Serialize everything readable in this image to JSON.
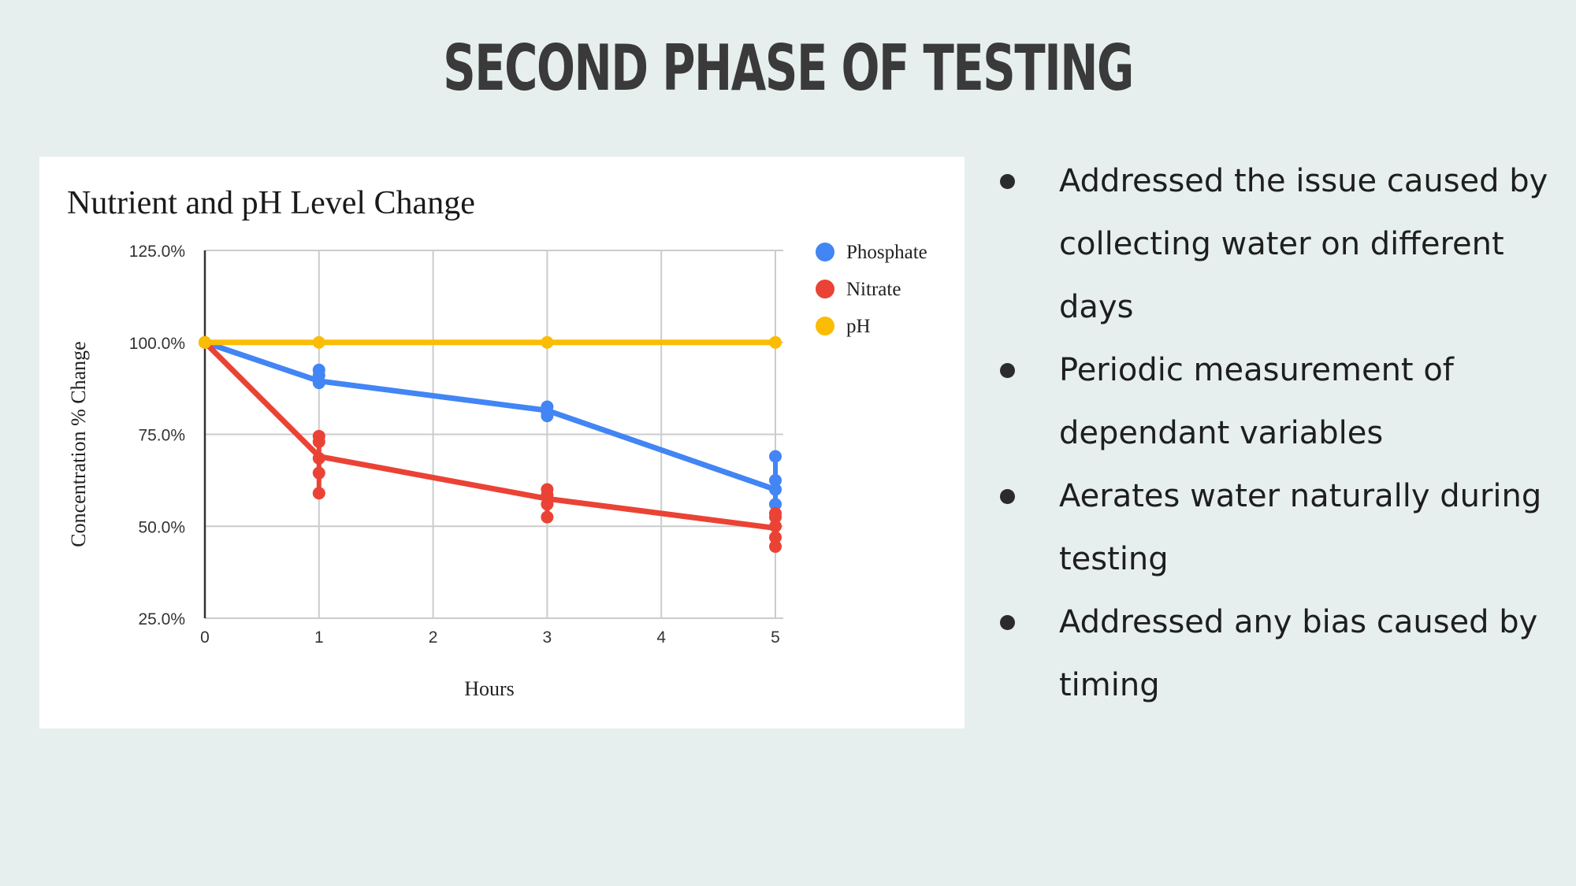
{
  "slide": {
    "title": "SECOND PHASE OF TESTING",
    "bullets": [
      "Addressed the issue caused by collecting water on different days",
      "Periodic measurement of dependant variables",
      "Aerates water naturally during testing",
      "Addressed any bias caused by timing"
    ]
  },
  "chart_data": {
    "type": "line",
    "title": "Nutrient and pH Level Change",
    "xlabel": "Hours",
    "ylabel": "Concentration % Change",
    "xlim": [
      0,
      5
    ],
    "ylim": [
      25,
      125
    ],
    "x_ticks": [
      "0",
      "1",
      "2",
      "3",
      "4",
      "5"
    ],
    "y_ticks": [
      "25.0%",
      "50.0%",
      "75.0%",
      "100.0%",
      "125.0%"
    ],
    "grid": true,
    "legend_position": "right",
    "series": [
      {
        "name": "Phosphate",
        "color": "#4285f4",
        "trend": [
          [
            0,
            100
          ],
          [
            1,
            89.5
          ],
          [
            3,
            81.5
          ],
          [
            5,
            60
          ]
        ],
        "points": [
          [
            1,
            92.5
          ],
          [
            1,
            91
          ],
          [
            1,
            89
          ],
          [
            3,
            82.5
          ],
          [
            3,
            81
          ],
          [
            3,
            80
          ],
          [
            5,
            69
          ],
          [
            5,
            62.5
          ],
          [
            5,
            60
          ],
          [
            5,
            56
          ]
        ]
      },
      {
        "name": "Nitrate",
        "color": "#ea4335",
        "trend": [
          [
            0,
            100
          ],
          [
            1,
            69
          ],
          [
            3,
            57.5
          ],
          [
            5,
            49.5
          ]
        ],
        "points": [
          [
            1,
            74.5
          ],
          [
            1,
            73
          ],
          [
            1,
            68.5
          ],
          [
            1,
            64.5
          ],
          [
            1,
            59
          ],
          [
            3,
            60
          ],
          [
            3,
            58.5
          ],
          [
            3,
            56
          ],
          [
            3,
            52.5
          ],
          [
            5,
            53.5
          ],
          [
            5,
            52.5
          ],
          [
            5,
            50
          ],
          [
            5,
            47
          ],
          [
            5,
            44.5
          ]
        ]
      },
      {
        "name": "pH",
        "color": "#fbbc04",
        "trend": [
          [
            0,
            100
          ],
          [
            1,
            100
          ],
          [
            3,
            100
          ],
          [
            5,
            100
          ]
        ],
        "points": [
          [
            0,
            100
          ],
          [
            1,
            100
          ],
          [
            3,
            100
          ],
          [
            5,
            100
          ]
        ]
      }
    ]
  }
}
